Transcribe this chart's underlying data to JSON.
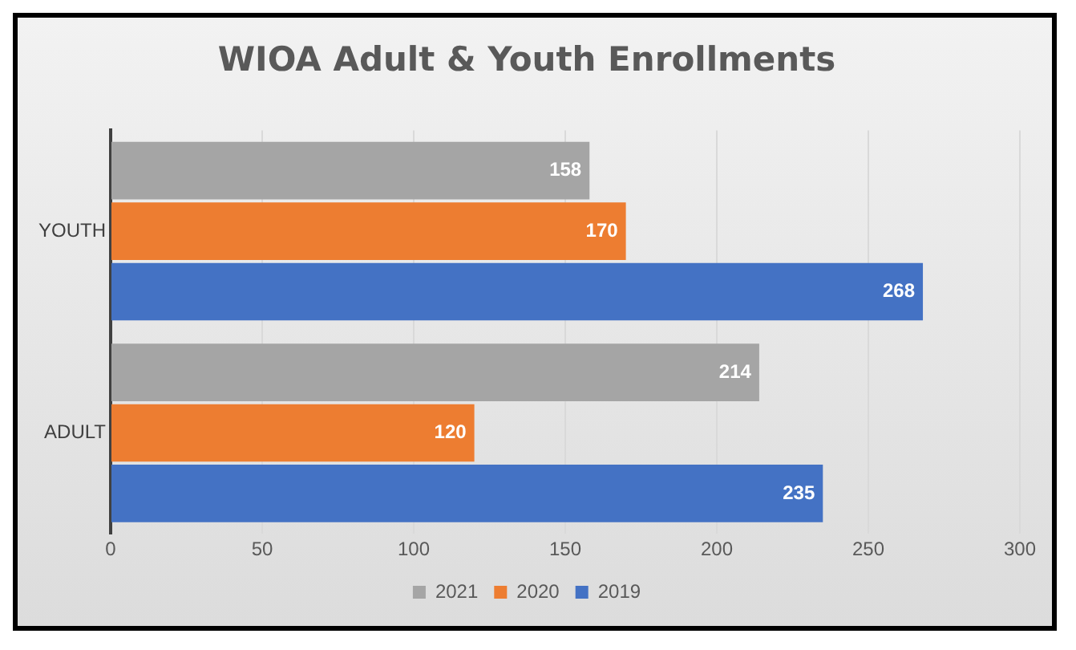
{
  "chart_data": {
    "type": "bar",
    "orientation": "horizontal",
    "title": "WIOA Adult & Youth Enrollments",
    "categories": [
      "YOUTH",
      "ADULT"
    ],
    "series": [
      {
        "name": "2021",
        "color": "#a5a5a5",
        "values": [
          158,
          214
        ]
      },
      {
        "name": "2020",
        "color": "#ed7d31",
        "values": [
          170,
          120
        ]
      },
      {
        "name": "2019",
        "color": "#4472c4",
        "values": [
          268,
          235
        ]
      }
    ],
    "xlim": [
      0,
      300
    ],
    "xticks": [
      0,
      50,
      100,
      150,
      200,
      250,
      300
    ],
    "grid": "x",
    "legend": "bottom",
    "data_labels": true
  }
}
